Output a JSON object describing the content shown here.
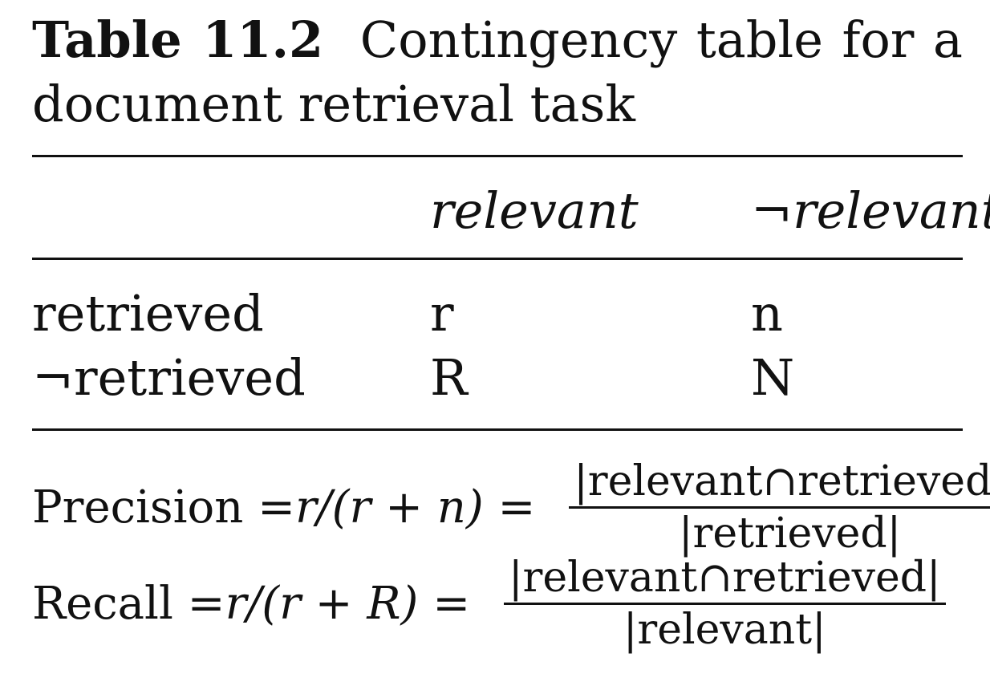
{
  "caption": {
    "label": "Table 11.2",
    "text": "Contingency table for a document retrieval task"
  },
  "table": {
    "columns": [
      "relevant",
      "¬relevant"
    ],
    "rows": [
      {
        "label": "retrieved",
        "cells": [
          "r",
          "n"
        ]
      },
      {
        "label": "¬retrieved",
        "cells": [
          "R",
          "N"
        ]
      }
    ]
  },
  "formulas": {
    "precision": {
      "lhs": "Precision = ",
      "expr": "r/(r + n)",
      "eq": " = ",
      "numerator": "|relevant∩retrieved|",
      "denominator": "|retrieved|"
    },
    "recall": {
      "lhs": "Recall = ",
      "expr": "r/(r + R)",
      "eq": " = ",
      "numerator": "|relevant∩retrieved|",
      "denominator": "|relevant|"
    }
  }
}
